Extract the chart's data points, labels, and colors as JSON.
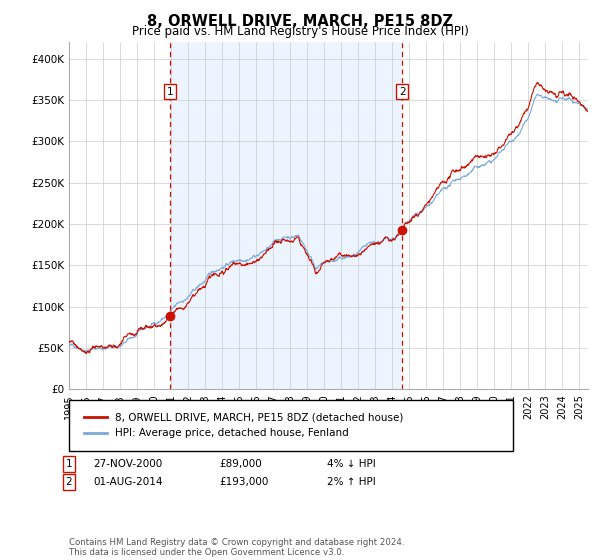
{
  "title": "8, ORWELL DRIVE, MARCH, PE15 8DZ",
  "subtitle": "Price paid vs. HM Land Registry's House Price Index (HPI)",
  "ylim": [
    0,
    420000
  ],
  "xlim_start": 1995.0,
  "xlim_end": 2025.5,
  "hpi_color": "#7aaadd",
  "price_color": "#cc1100",
  "bg_color": "#ddeeff",
  "sale1_date": 2000.92,
  "sale1_price": 89000,
  "sale2_date": 2014.58,
  "sale2_price": 193000,
  "legend_label1": "8, ORWELL DRIVE, MARCH, PE15 8DZ (detached house)",
  "legend_label2": "HPI: Average price, detached house, Fenland",
  "note1_date": "27-NOV-2000",
  "note1_price": "£89,000",
  "note1_hpi": "4% ↓ HPI",
  "note2_date": "01-AUG-2014",
  "note2_price": "£193,000",
  "note2_hpi": "2% ↑ HPI",
  "footer": "Contains HM Land Registry data © Crown copyright and database right 2024.\nThis data is licensed under the Open Government Licence v3.0.",
  "yticks": [
    0,
    50000,
    100000,
    150000,
    200000,
    250000,
    300000,
    350000,
    400000
  ],
  "ytick_labels": [
    "£0",
    "£50K",
    "£100K",
    "£150K",
    "£200K",
    "£250K",
    "£300K",
    "£350K",
    "£400K"
  ]
}
